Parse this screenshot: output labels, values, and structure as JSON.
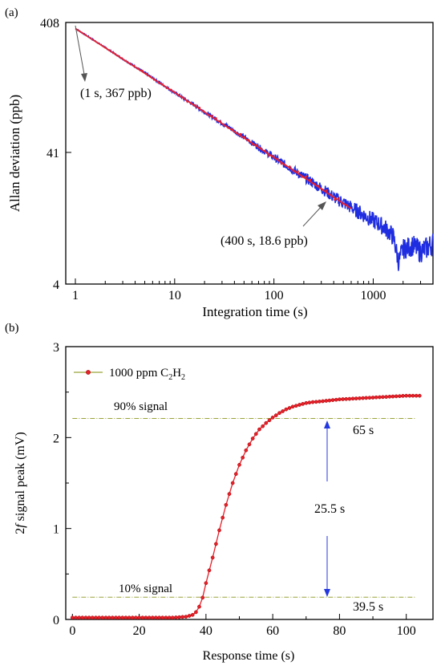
{
  "colors": {
    "axis": "#000000",
    "allan_noise": "#1f2de0",
    "allan_fit": "#e8202a",
    "response_series": "#e8202a",
    "threshold_line": "#9aa33a",
    "arrow_blue": "#2438e0",
    "annotation_arrow": "#555555"
  },
  "chart_data": [
    {
      "panel_label": "(a)",
      "type": "line",
      "xscale": "log",
      "yscale": "log",
      "xlabel": "Integration time (s)",
      "ylabel": "Allan deviation (ppb)",
      "xlim": [
        0.8,
        4000
      ],
      "ylim": [
        4,
        408
      ],
      "x_ticks": [
        1,
        10,
        100,
        1000
      ],
      "x_tick_labels": [
        "1",
        "10",
        "100",
        "1000"
      ],
      "y_ticks": [
        4,
        41,
        408
      ],
      "y_tick_labels": [
        "4",
        "41",
        "408"
      ],
      "grid": false,
      "series": [
        {
          "x": [
            1,
            2,
            3,
            5,
            7,
            10,
            20,
            30,
            50,
            70,
            100,
            150,
            200,
            300,
            400,
            500,
            600,
            800,
            1000,
            1300,
            1600,
            1800,
            2000,
            2500,
            3000,
            3500,
            4000
          ],
          "y": [
            367,
            262,
            214,
            168,
            141,
            118,
            84,
            69,
            53.5,
            45,
            37.5,
            30.7,
            26.6,
            21.8,
            18.6,
            16.9,
            15.5,
            13.6,
            12.3,
            10.9,
            9.2,
            5.9,
            7.4,
            7.9,
            7.1,
            7.6,
            8.2
          ]
        },
        {
          "x": [
            1,
            10,
            100,
            400,
            600
          ],
          "y": [
            367,
            118,
            37.5,
            18.6,
            15.2
          ]
        }
      ],
      "annotations": [
        {
          "text": "(1 s, 367 ppb)",
          "x": 1,
          "y": 367
        },
        {
          "text": "(400 s, 18.6 ppb)",
          "x": 400,
          "y": 18.6
        }
      ]
    },
    {
      "panel_label": "(b)",
      "type": "line",
      "xlabel": "Response time (s)",
      "ylabel_italic": "f",
      "ylabel_prefix": "2",
      "ylabel_suffix": " signal peak (mV)",
      "xlim": [
        -2,
        108
      ],
      "ylim": [
        0,
        3
      ],
      "x_ticks": [
        0,
        20,
        40,
        60,
        80,
        100
      ],
      "x_tick_labels": [
        "0",
        "20",
        "40",
        "60",
        "80",
        "100"
      ],
      "y_ticks": [
        0,
        1,
        2,
        3
      ],
      "y_tick_labels": [
        "0",
        "1",
        "2",
        "3"
      ],
      "grid": false,
      "legend_placement": "top-left",
      "series": [
        {
          "name_text": "1000 ppm C",
          "name_sub1": "2",
          "name_mid": "H",
          "name_sub2": "2",
          "x": [
            0,
            10,
            20,
            30,
            34,
            36,
            37,
            38,
            39,
            40,
            42,
            44,
            46,
            48,
            50,
            52,
            54,
            56,
            58,
            60,
            62,
            64,
            66,
            68,
            70,
            72,
            75,
            80,
            85,
            90,
            95,
            100,
            104
          ],
          "y": [
            0.02,
            0.02,
            0.02,
            0.02,
            0.03,
            0.05,
            0.08,
            0.14,
            0.24,
            0.4,
            0.68,
            0.98,
            1.26,
            1.5,
            1.7,
            1.86,
            1.99,
            2.09,
            2.16,
            2.22,
            2.27,
            2.31,
            2.34,
            2.36,
            2.38,
            2.39,
            2.4,
            2.42,
            2.43,
            2.44,
            2.45,
            2.46,
            2.46
          ]
        }
      ],
      "reference_lines": [
        {
          "label": "90% signal",
          "y": 2.21,
          "x_start": 0,
          "x_end": 103
        },
        {
          "label": "10% signal",
          "y": 0.245,
          "x_start": 0,
          "x_end": 103
        }
      ],
      "annotations": [
        {
          "text": "65 s"
        },
        {
          "text": "25.5 s"
        },
        {
          "text": "39.5 s"
        }
      ]
    }
  ]
}
